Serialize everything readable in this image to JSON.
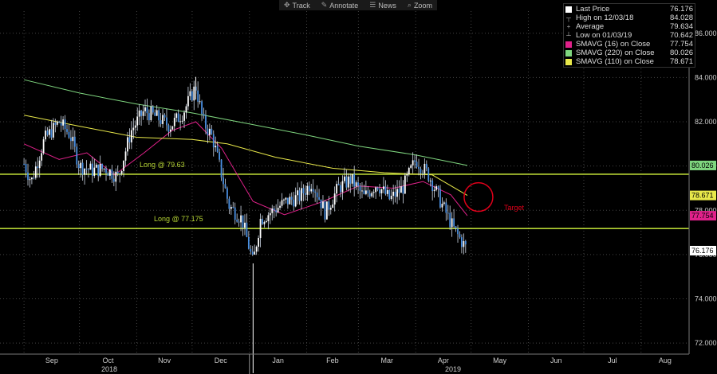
{
  "toolbar": {
    "track_label": "Track",
    "annotate_label": "Annotate",
    "news_label": "News",
    "zoom_label": "Zoom"
  },
  "legend": {
    "last_price": {
      "label": "Last Price",
      "value": "76.176",
      "color": "#ffffff"
    },
    "high": {
      "label": "High on 12/03/18",
      "value": "84.028"
    },
    "average": {
      "label": "Average",
      "value": "79.634"
    },
    "low": {
      "label": "Low on 01/03/19",
      "value": "70.642"
    },
    "sma16": {
      "label": "SMAVG (16)  on Close",
      "value": "77.754",
      "color": "#e0218a"
    },
    "sma220": {
      "label": "SMAVG (220)  on Close",
      "value": "80.026",
      "color": "#7fd67f"
    },
    "sma110": {
      "label": "SMAVG (110)  on Close",
      "value": "78.671",
      "color": "#e8e84a"
    }
  },
  "chart_data": {
    "type": "candlestick",
    "ylim": [
      71.5,
      87
    ],
    "y_ticks": [
      "72.000",
      "74.000",
      "76.000",
      "78.000",
      "80.000",
      "82.000",
      "84.000",
      "86.000"
    ],
    "x_ticks": [
      "Sep",
      "Oct",
      "Nov",
      "Dec",
      "Jan",
      "Feb",
      "Mar",
      "Apr",
      "May",
      "Jun",
      "Jul",
      "Aug"
    ],
    "x_years": [
      "2018",
      "2019"
    ],
    "price_path": [
      [
        "2018-09-01",
        80.1
      ],
      [
        "2018-09-05",
        79.3
      ],
      [
        "2018-09-12",
        81.2
      ],
      [
        "2018-09-20",
        82.0
      ],
      [
        "2018-09-26",
        81.4
      ],
      [
        "2018-10-01",
        80.0
      ],
      [
        "2018-10-08",
        79.8
      ],
      [
        "2018-10-15",
        79.9
      ],
      [
        "2018-10-22",
        79.5
      ],
      [
        "2018-10-29",
        81.6
      ],
      [
        "2018-11-05",
        82.5
      ],
      [
        "2018-11-12",
        82.2
      ],
      [
        "2018-11-19",
        81.8
      ],
      [
        "2018-11-26",
        82.4
      ],
      [
        "2018-12-03",
        83.6
      ],
      [
        "2018-12-07",
        82.0
      ],
      [
        "2018-12-12",
        81.3
      ],
      [
        "2018-12-17",
        79.6
      ],
      [
        "2018-12-21",
        78.2
      ],
      [
        "2018-12-28",
        77.6
      ],
      [
        "2019-01-03",
        75.6
      ],
      [
        "2019-01-07",
        77.6
      ],
      [
        "2019-01-14",
        78.0
      ],
      [
        "2019-01-21",
        78.4
      ],
      [
        "2019-01-28",
        78.6
      ],
      [
        "2019-02-04",
        79.3
      ],
      [
        "2019-02-11",
        77.9
      ],
      [
        "2019-02-18",
        79.0
      ],
      [
        "2019-02-25",
        79.4
      ],
      [
        "2019-03-04",
        78.6
      ],
      [
        "2019-03-11",
        79.2
      ],
      [
        "2019-03-18",
        78.5
      ],
      [
        "2019-03-25",
        79.0
      ],
      [
        "2019-04-01",
        80.3
      ],
      [
        "2019-04-08",
        79.6
      ],
      [
        "2019-04-15",
        78.3
      ],
      [
        "2019-04-22",
        77.1
      ],
      [
        "2019-04-29",
        76.2
      ]
    ],
    "low_spike": {
      "date": "2019-01-03",
      "low": 70.642
    },
    "high_spike": {
      "date": "2018-12-03",
      "high": 84.028
    },
    "moving_averages": {
      "sma16": [
        [
          "2018-09-01",
          81.0
        ],
        [
          "2018-09-20",
          80.3
        ],
        [
          "2018-10-05",
          80.6
        ],
        [
          "2018-10-20",
          79.6
        ],
        [
          "2018-11-05",
          80.6
        ],
        [
          "2018-11-20",
          81.6
        ],
        [
          "2018-12-03",
          82.0
        ],
        [
          "2018-12-17",
          80.8
        ],
        [
          "2019-01-03",
          78.4
        ],
        [
          "2019-01-20",
          77.8
        ],
        [
          "2019-02-10",
          78.4
        ],
        [
          "2019-03-01",
          79.1
        ],
        [
          "2019-03-20",
          79.0
        ],
        [
          "2019-04-05",
          79.3
        ],
        [
          "2019-04-20",
          78.7
        ],
        [
          "2019-04-29",
          77.754
        ]
      ],
      "sma110": [
        [
          "2018-09-01",
          82.3
        ],
        [
          "2018-10-01",
          81.8
        ],
        [
          "2018-11-01",
          81.3
        ],
        [
          "2018-12-01",
          81.2
        ],
        [
          "2018-12-20",
          81.0
        ],
        [
          "2019-01-15",
          80.4
        ],
        [
          "2019-02-15",
          79.9
        ],
        [
          "2019-03-15",
          79.7
        ],
        [
          "2019-04-10",
          79.6
        ],
        [
          "2019-04-29",
          78.671
        ]
      ],
      "sma220": [
        [
          "2018-09-01",
          83.9
        ],
        [
          "2018-10-01",
          83.3
        ],
        [
          "2018-11-01",
          82.8
        ],
        [
          "2018-12-01",
          82.4
        ],
        [
          "2019-01-01",
          81.9
        ],
        [
          "2019-02-01",
          81.4
        ],
        [
          "2019-03-01",
          80.9
        ],
        [
          "2019-04-01",
          80.5
        ],
        [
          "2019-04-29",
          80.026
        ]
      ]
    },
    "horizontal_lines": [
      {
        "y": 79.63,
        "label": "Long @ 79.63",
        "color": "#b5d334"
      },
      {
        "y": 77.175,
        "label": "Long @ 77.175",
        "color": "#b5d334"
      }
    ],
    "annotations": {
      "target_label": "Target",
      "target_circle": {
        "date": "2019-05-05",
        "y": 78.6,
        "color": "#e0001a"
      }
    },
    "right_axis_labels": [
      {
        "value": "80.026",
        "bg": "#7fd67f"
      },
      {
        "value": "78.671",
        "bg": "#e8e84a"
      },
      {
        "value": "77.754",
        "bg": "#e0218a"
      },
      {
        "value": "76.176",
        "bg": "#ffffff"
      }
    ]
  }
}
